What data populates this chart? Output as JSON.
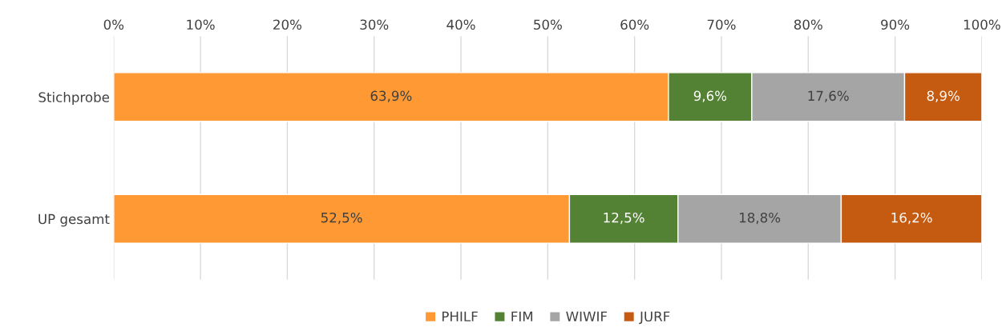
{
  "chart_data": {
    "type": "bar",
    "orientation": "horizontal",
    "stacked": true,
    "categories": [
      "Stichprobe",
      "UP gesamt"
    ],
    "series": [
      {
        "name": "PHILF",
        "color": "#ff9933",
        "values": [
          63.9,
          52.5
        ],
        "value_labels": [
          "63,9%",
          "52,5%"
        ]
      },
      {
        "name": "FIM",
        "color": "#548235",
        "values": [
          9.6,
          12.5
        ],
        "value_labels": [
          "9,6%",
          "12,5%"
        ]
      },
      {
        "name": "WIWIF",
        "color": "#a5a5a5",
        "values": [
          17.6,
          18.8
        ],
        "value_labels": [
          "17,6%",
          "18,8%"
        ]
      },
      {
        "name": "JURF",
        "color": "#c55a11",
        "values": [
          8.9,
          16.2
        ],
        "value_labels": [
          "8,9%",
          "16,2%"
        ]
      }
    ],
    "xlim": [
      0,
      100
    ],
    "xticks": [
      {
        "value": 0,
        "label": "0%"
      },
      {
        "value": 10,
        "label": "10%"
      },
      {
        "value": 20,
        "label": "20%"
      },
      {
        "value": 30,
        "label": "30%"
      },
      {
        "value": 40,
        "label": "40%"
      },
      {
        "value": 50,
        "label": "50%"
      },
      {
        "value": 60,
        "label": "60%"
      },
      {
        "value": 70,
        "label": "70%"
      },
      {
        "value": 80,
        "label": "80%"
      },
      {
        "value": 90,
        "label": "90%"
      },
      {
        "value": 100,
        "label": "100%"
      }
    ],
    "grid": "x",
    "legend": "bottom"
  }
}
